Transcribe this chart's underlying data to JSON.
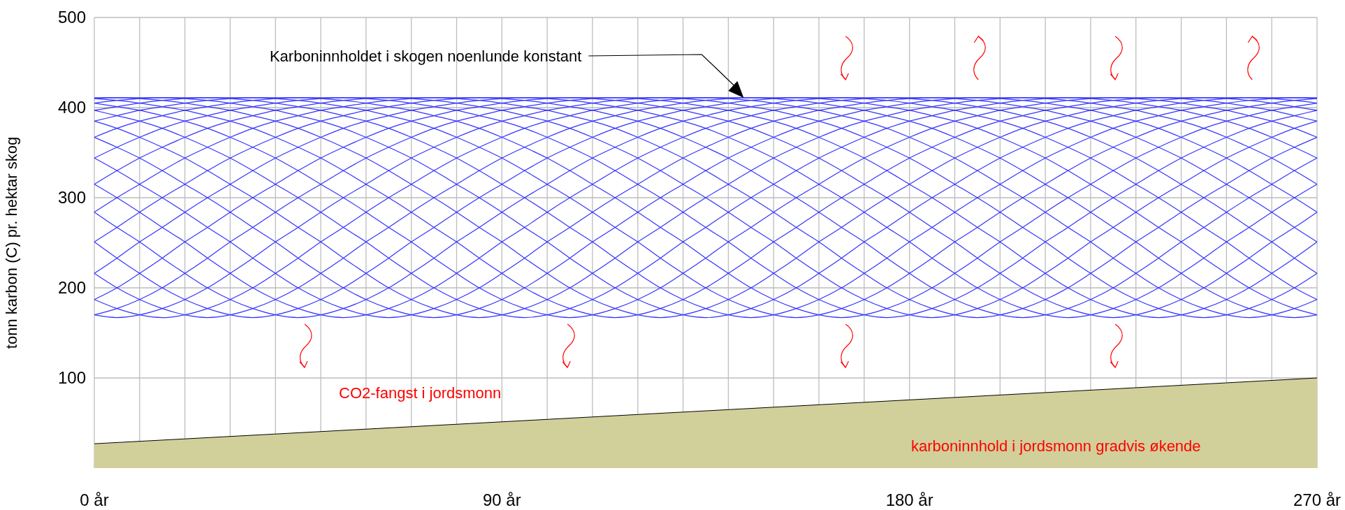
{
  "chart_data": {
    "type": "line",
    "ylabel": "tonn karbon (C) pr. hektar skog",
    "x": [
      0,
      5,
      10,
      15,
      20,
      25,
      30,
      35,
      40,
      45,
      50,
      55,
      60,
      65,
      70,
      75,
      80,
      85,
      90,
      95,
      100,
      105,
      110,
      115,
      120,
      125,
      130,
      135,
      140,
      145,
      150,
      155,
      160,
      165,
      170,
      175,
      180,
      185,
      190,
      195,
      200,
      205,
      210,
      215,
      220,
      225,
      230,
      235,
      240,
      245,
      250,
      255,
      260,
      265,
      270
    ],
    "xlim": [
      0,
      270
    ],
    "xticks": [
      {
        "value": 0,
        "label": "0 år"
      },
      {
        "value": 10,
        "label": null
      },
      {
        "value": 20,
        "label": null
      },
      {
        "value": 30,
        "label": null
      },
      {
        "value": 40,
        "label": null
      },
      {
        "value": 50,
        "label": null
      },
      {
        "value": 60,
        "label": null
      },
      {
        "value": 70,
        "label": null
      },
      {
        "value": 80,
        "label": null
      },
      {
        "value": 90,
        "label": "90 år"
      },
      {
        "value": 100,
        "label": null
      },
      {
        "value": 110,
        "label": null
      },
      {
        "value": 120,
        "label": null
      },
      {
        "value": 130,
        "label": null
      },
      {
        "value": 140,
        "label": null
      },
      {
        "value": 150,
        "label": null
      },
      {
        "value": 160,
        "label": null
      },
      {
        "value": 170,
        "label": null
      },
      {
        "value": 180,
        "label": "180 år"
      },
      {
        "value": 190,
        "label": null
      },
      {
        "value": 200,
        "label": null
      },
      {
        "value": 210,
        "label": null
      },
      {
        "value": 220,
        "label": null
      },
      {
        "value": 230,
        "label": null
      },
      {
        "value": 240,
        "label": null
      },
      {
        "value": 250,
        "label": null
      },
      {
        "value": 260,
        "label": null
      },
      {
        "value": 270,
        "label": "270 år"
      }
    ],
    "ylim": [
      0,
      500
    ],
    "yticks": [
      100,
      200,
      300,
      400,
      500
    ],
    "grid": true,
    "line_style": "solid",
    "annotations": [
      "Karboninnholdet i skogen noenlunde konstant",
      "CO2-fangst i jordsmonn",
      "karboninnhold i jordsmonn gradvis økende"
    ],
    "series": [
      {
        "type": "area",
        "color": "#d1d09a",
        "x": [
          0,
          270
        ],
        "values": [
          27,
          100
        ]
      },
      {
        "color": "#3333ff",
        "values": [
          170,
          177,
          187,
          200,
          216,
          233,
          251,
          267,
          284,
          300,
          315,
          330,
          344,
          356,
          367,
          377,
          385,
          391,
          397,
          401,
          405,
          408,
          410,
          411,
          411,
          411,
          410,
          408,
          405,
          401,
          397,
          391,
          385,
          377,
          367,
          356,
          344,
          330,
          315,
          300,
          284,
          267,
          251,
          233,
          216,
          200,
          187,
          177,
          170,
          167,
          170,
          177,
          187,
          200,
          216
        ]
      },
      {
        "color": "#3333ff",
        "values": [
          187,
          200,
          216,
          233,
          251,
          267,
          284,
          300,
          315,
          330,
          344,
          356,
          367,
          377,
          385,
          391,
          397,
          401,
          405,
          408,
          410,
          411,
          411,
          411,
          410,
          408,
          405,
          401,
          397,
          391,
          385,
          377,
          367,
          356,
          344,
          330,
          315,
          300,
          284,
          267,
          251,
          233,
          216,
          200,
          187,
          177,
          170,
          167,
          170,
          177,
          187,
          200,
          216,
          233,
          251
        ]
      },
      {
        "color": "#3333ff",
        "values": [
          216,
          233,
          251,
          267,
          284,
          300,
          315,
          330,
          344,
          356,
          367,
          377,
          385,
          391,
          397,
          401,
          405,
          408,
          410,
          411,
          411,
          411,
          410,
          408,
          405,
          401,
          397,
          391,
          385,
          377,
          367,
          356,
          344,
          330,
          315,
          300,
          284,
          267,
          251,
          233,
          216,
          200,
          187,
          177,
          170,
          167,
          170,
          177,
          187,
          200,
          216,
          233,
          251,
          267,
          284
        ]
      },
      {
        "color": "#3333ff",
        "values": [
          251,
          267,
          284,
          300,
          315,
          330,
          344,
          356,
          367,
          377,
          385,
          391,
          397,
          401,
          405,
          408,
          410,
          411,
          411,
          411,
          410,
          408,
          405,
          401,
          397,
          391,
          385,
          377,
          367,
          356,
          344,
          330,
          315,
          300,
          284,
          267,
          251,
          233,
          216,
          200,
          187,
          177,
          170,
          167,
          170,
          177,
          187,
          200,
          216,
          233,
          251,
          267,
          284,
          300,
          315
        ]
      },
      {
        "color": "#3333ff",
        "values": [
          284,
          300,
          315,
          330,
          344,
          356,
          367,
          377,
          385,
          391,
          397,
          401,
          405,
          408,
          410,
          411,
          411,
          411,
          410,
          408,
          405,
          401,
          397,
          391,
          385,
          377,
          367,
          356,
          344,
          330,
          315,
          300,
          284,
          267,
          251,
          233,
          216,
          200,
          187,
          177,
          170,
          167,
          170,
          177,
          187,
          200,
          216,
          233,
          251,
          267,
          284,
          300,
          315,
          330,
          344
        ]
      },
      {
        "color": "#3333ff",
        "values": [
          315,
          330,
          344,
          356,
          367,
          377,
          385,
          391,
          397,
          401,
          405,
          408,
          410,
          411,
          411,
          411,
          410,
          408,
          405,
          401,
          397,
          391,
          385,
          377,
          367,
          356,
          344,
          330,
          315,
          300,
          284,
          267,
          251,
          233,
          216,
          200,
          187,
          177,
          170,
          167,
          170,
          177,
          187,
          200,
          216,
          233,
          251,
          267,
          284,
          300,
          315,
          330,
          344,
          356,
          367
        ]
      },
      {
        "color": "#3333ff",
        "values": [
          344,
          356,
          367,
          377,
          385,
          391,
          397,
          401,
          405,
          408,
          410,
          411,
          411,
          411,
          410,
          408,
          405,
          401,
          397,
          391,
          385,
          377,
          367,
          356,
          344,
          330,
          315,
          300,
          284,
          267,
          251,
          233,
          216,
          200,
          187,
          177,
          170,
          167,
          170,
          177,
          187,
          200,
          216,
          233,
          251,
          267,
          284,
          300,
          315,
          330,
          344,
          356,
          367,
          377,
          385
        ]
      },
      {
        "color": "#3333ff",
        "values": [
          367,
          377,
          385,
          391,
          397,
          401,
          405,
          408,
          410,
          411,
          411,
          411,
          410,
          408,
          405,
          401,
          397,
          391,
          385,
          377,
          367,
          356,
          344,
          330,
          315,
          300,
          284,
          267,
          251,
          233,
          216,
          200,
          187,
          177,
          170,
          167,
          170,
          177,
          187,
          200,
          216,
          233,
          251,
          267,
          284,
          300,
          315,
          330,
          344,
          356,
          367,
          377,
          385,
          391,
          397
        ]
      },
      {
        "color": "#3333ff",
        "values": [
          385,
          391,
          397,
          401,
          405,
          408,
          410,
          411,
          411,
          411,
          410,
          408,
          405,
          401,
          397,
          391,
          385,
          377,
          367,
          356,
          344,
          330,
          315,
          300,
          284,
          267,
          251,
          233,
          216,
          200,
          187,
          177,
          170,
          167,
          170,
          177,
          187,
          200,
          216,
          233,
          251,
          267,
          284,
          300,
          315,
          330,
          344,
          356,
          367,
          377,
          385,
          391,
          397,
          401,
          405
        ]
      },
      {
        "color": "#3333ff",
        "values": [
          397,
          401,
          405,
          408,
          410,
          411,
          411,
          411,
          410,
          408,
          405,
          401,
          397,
          391,
          385,
          377,
          367,
          356,
          344,
          330,
          315,
          300,
          284,
          267,
          251,
          233,
          216,
          200,
          187,
          177,
          170,
          167,
          170,
          177,
          187,
          200,
          216,
          233,
          251,
          267,
          284,
          300,
          315,
          330,
          344,
          356,
          367,
          377,
          385,
          391,
          397,
          401,
          405,
          408,
          410
        ]
      },
      {
        "color": "#3333ff",
        "values": [
          405,
          408,
          410,
          411,
          411,
          411,
          410,
          408,
          405,
          401,
          397,
          391,
          385,
          377,
          367,
          356,
          344,
          330,
          315,
          300,
          284,
          267,
          251,
          233,
          216,
          200,
          187,
          177,
          170,
          167,
          170,
          177,
          187,
          200,
          216,
          233,
          251,
          267,
          284,
          300,
          315,
          330,
          344,
          356,
          367,
          377,
          385,
          391,
          397,
          401,
          405,
          408,
          410,
          411,
          411
        ]
      },
      {
        "color": "#3333ff",
        "values": [
          410,
          411,
          411,
          411,
          410,
          408,
          405,
          401,
          397,
          391,
          385,
          377,
          367,
          356,
          344,
          330,
          315,
          300,
          284,
          267,
          251,
          233,
          216,
          200,
          187,
          177,
          170,
          167,
          170,
          177,
          187,
          200,
          216,
          233,
          251,
          267,
          284,
          300,
          315,
          330,
          344,
          356,
          367,
          377,
          385,
          391,
          397,
          401,
          405,
          408,
          410,
          411,
          411,
          411,
          410
        ]
      },
      {
        "color": "#3333ff",
        "values": [
          411,
          411,
          410,
          408,
          405,
          401,
          397,
          391,
          385,
          377,
          367,
          356,
          344,
          330,
          315,
          300,
          284,
          267,
          251,
          233,
          216,
          200,
          187,
          177,
          170,
          167,
          170,
          177,
          187,
          200,
          216,
          233,
          251,
          267,
          284,
          300,
          315,
          330,
          344,
          356,
          367,
          377,
          385,
          391,
          397,
          401,
          405,
          408,
          410,
          411,
          411,
          411,
          410,
          408,
          405
        ]
      },
      {
        "color": "#3333ff",
        "values": [
          410,
          408,
          405,
          401,
          397,
          391,
          385,
          377,
          367,
          356,
          344,
          330,
          315,
          300,
          284,
          267,
          251,
          233,
          216,
          200,
          187,
          177,
          170,
          167,
          170,
          177,
          187,
          200,
          216,
          233,
          251,
          267,
          284,
          300,
          315,
          330,
          344,
          356,
          367,
          377,
          385,
          391,
          397,
          401,
          405,
          408,
          410,
          411,
          411,
          411,
          410,
          408,
          405,
          401,
          397
        ]
      },
      {
        "color": "#3333ff",
        "values": [
          405,
          401,
          397,
          391,
          385,
          377,
          367,
          356,
          344,
          330,
          315,
          300,
          284,
          267,
          251,
          233,
          216,
          200,
          187,
          177,
          170,
          167,
          170,
          177,
          187,
          200,
          216,
          233,
          251,
          267,
          284,
          300,
          315,
          330,
          344,
          356,
          367,
          377,
          385,
          391,
          397,
          401,
          405,
          408,
          410,
          411,
          411,
          411,
          410,
          408,
          405,
          401,
          397,
          391,
          385
        ]
      },
      {
        "color": "#3333ff",
        "values": [
          397,
          391,
          385,
          377,
          367,
          356,
          344,
          330,
          315,
          300,
          284,
          267,
          251,
          233,
          216,
          200,
          187,
          177,
          170,
          167,
          170,
          177,
          187,
          200,
          216,
          233,
          251,
          267,
          284,
          300,
          315,
          330,
          344,
          356,
          367,
          377,
          385,
          391,
          397,
          401,
          405,
          408,
          410,
          411,
          411,
          411,
          410,
          408,
          405,
          401,
          397,
          391,
          385,
          377,
          367
        ]
      },
      {
        "color": "#3333ff",
        "values": [
          385,
          377,
          367,
          356,
          344,
          330,
          315,
          300,
          284,
          267,
          251,
          233,
          216,
          200,
          187,
          177,
          170,
          167,
          170,
          177,
          187,
          200,
          216,
          233,
          251,
          267,
          284,
          300,
          315,
          330,
          344,
          356,
          367,
          377,
          385,
          391,
          397,
          401,
          405,
          408,
          410,
          411,
          411,
          411,
          410,
          408,
          405,
          401,
          397,
          391,
          385,
          377,
          367,
          356,
          344
        ]
      },
      {
        "color": "#3333ff",
        "values": [
          367,
          356,
          344,
          330,
          315,
          300,
          284,
          267,
          251,
          233,
          216,
          200,
          187,
          177,
          170,
          167,
          170,
          177,
          187,
          200,
          216,
          233,
          251,
          267,
          284,
          300,
          315,
          330,
          344,
          356,
          367,
          377,
          385,
          391,
          397,
          401,
          405,
          408,
          410,
          411,
          411,
          411,
          410,
          408,
          405,
          401,
          397,
          391,
          385,
          377,
          367,
          356,
          344,
          330,
          315
        ]
      },
      {
        "color": "#3333ff",
        "values": [
          344,
          330,
          315,
          300,
          284,
          267,
          251,
          233,
          216,
          200,
          187,
          177,
          170,
          167,
          170,
          177,
          187,
          200,
          216,
          233,
          251,
          267,
          284,
          300,
          315,
          330,
          344,
          356,
          367,
          377,
          385,
          391,
          397,
          401,
          405,
          408,
          410,
          411,
          411,
          411,
          410,
          408,
          405,
          401,
          397,
          391,
          385,
          377,
          367,
          356,
          344,
          330,
          315,
          300,
          284
        ]
      },
      {
        "color": "#3333ff",
        "values": [
          315,
          300,
          284,
          267,
          251,
          233,
          216,
          200,
          187,
          177,
          170,
          167,
          170,
          177,
          187,
          200,
          216,
          233,
          251,
          267,
          284,
          300,
          315,
          330,
          344,
          356,
          367,
          377,
          385,
          391,
          397,
          401,
          405,
          408,
          410,
          411,
          411,
          411,
          410,
          408,
          405,
          401,
          397,
          391,
          385,
          377,
          367,
          356,
          344,
          330,
          315,
          300,
          284,
          267,
          251
        ]
      },
      {
        "color": "#3333ff",
        "values": [
          284,
          267,
          251,
          233,
          216,
          200,
          187,
          177,
          170,
          167,
          170,
          177,
          187,
          200,
          216,
          233,
          251,
          267,
          284,
          300,
          315,
          330,
          344,
          356,
          367,
          377,
          385,
          391,
          397,
          401,
          405,
          408,
          410,
          411,
          411,
          411,
          410,
          408,
          405,
          401,
          397,
          391,
          385,
          377,
          367,
          356,
          344,
          330,
          315,
          300,
          284,
          267,
          251,
          233,
          216
        ]
      },
      {
        "color": "#3333ff",
        "values": [
          251,
          233,
          216,
          200,
          187,
          177,
          170,
          167,
          170,
          177,
          187,
          200,
          216,
          233,
          251,
          267,
          284,
          300,
          315,
          330,
          344,
          356,
          367,
          377,
          385,
          391,
          397,
          401,
          405,
          408,
          410,
          411,
          411,
          411,
          410,
          408,
          405,
          401,
          397,
          391,
          385,
          377,
          367,
          356,
          344,
          330,
          315,
          300,
          284,
          267,
          251,
          233,
          216,
          200,
          187
        ]
      },
      {
        "color": "#3333ff",
        "values": [
          216,
          200,
          187,
          177,
          170,
          167,
          170,
          177,
          187,
          200,
          216,
          233,
          251,
          267,
          284,
          300,
          315,
          330,
          344,
          356,
          367,
          377,
          385,
          391,
          397,
          401,
          405,
          408,
          410,
          411,
          411,
          411,
          410,
          408,
          405,
          401,
          397,
          391,
          385,
          377,
          367,
          356,
          344,
          330,
          315,
          300,
          284,
          267,
          251,
          233,
          216,
          200,
          187,
          177,
          170
        ]
      },
      {
        "color": "#3333ff",
        "values": [
          187,
          177,
          170,
          167,
          170,
          177,
          187,
          200,
          216,
          233,
          251,
          267,
          284,
          300,
          315,
          330,
          344,
          356,
          367,
          377,
          385,
          391,
          397,
          401,
          405,
          408,
          410,
          411,
          411,
          411,
          410,
          408,
          405,
          401,
          397,
          391,
          385,
          377,
          367,
          356,
          344,
          330,
          315,
          300,
          284,
          267,
          251,
          233,
          216,
          200,
          187,
          177,
          170,
          167,
          170
        ]
      },
      {
        "color": "#3333ff",
        "values": [
          170,
          167,
          170,
          177,
          187,
          200,
          216,
          233,
          251,
          267,
          284,
          300,
          315,
          330,
          344,
          356,
          367,
          377,
          385,
          391,
          397,
          401,
          405,
          408,
          410,
          411,
          411,
          411,
          410,
          408,
          405,
          401,
          397,
          391,
          385,
          377,
          367,
          356,
          344,
          330,
          315,
          300,
          284,
          267,
          251,
          233,
          216,
          200,
          187,
          177,
          170,
          167,
          170,
          177,
          187
        ]
      }
    ]
  }
}
